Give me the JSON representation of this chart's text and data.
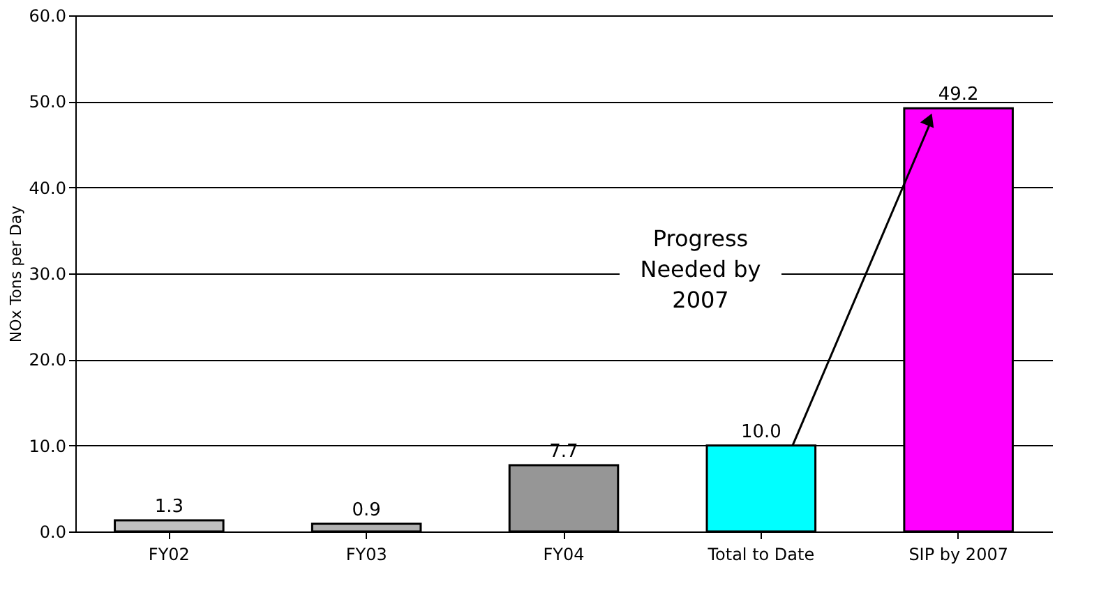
{
  "chart_data": {
    "type": "bar",
    "categories": [
      "FY02",
      "FY03",
      "FY04",
      "Total to Date",
      "SIP by 2007"
    ],
    "values": [
      1.3,
      0.9,
      7.7,
      10.0,
      49.2
    ],
    "colors": [
      "#c0c0c0",
      "#b2b2b2",
      "#969696",
      "#00ffff",
      "#ff00ff"
    ],
    "ylabel": "NOx Tons per Day",
    "ylim": [
      0,
      60
    ],
    "yticks": [
      {
        "value": 0,
        "label": "0.0"
      },
      {
        "value": 10,
        "label": "10.0"
      },
      {
        "value": 20,
        "label": "20.0"
      },
      {
        "value": 30,
        "label": "30.0"
      },
      {
        "value": 40,
        "label": "40.0"
      },
      {
        "value": 50,
        "label": "50.0"
      },
      {
        "value": 60,
        "label": "60.0"
      }
    ],
    "grid": "y",
    "value_labels": [
      "1.3",
      "0.9",
      "7.7",
      "10.0",
      "49.2"
    ],
    "annotations": [
      "Progress\nNeeded by\n2007"
    ]
  }
}
